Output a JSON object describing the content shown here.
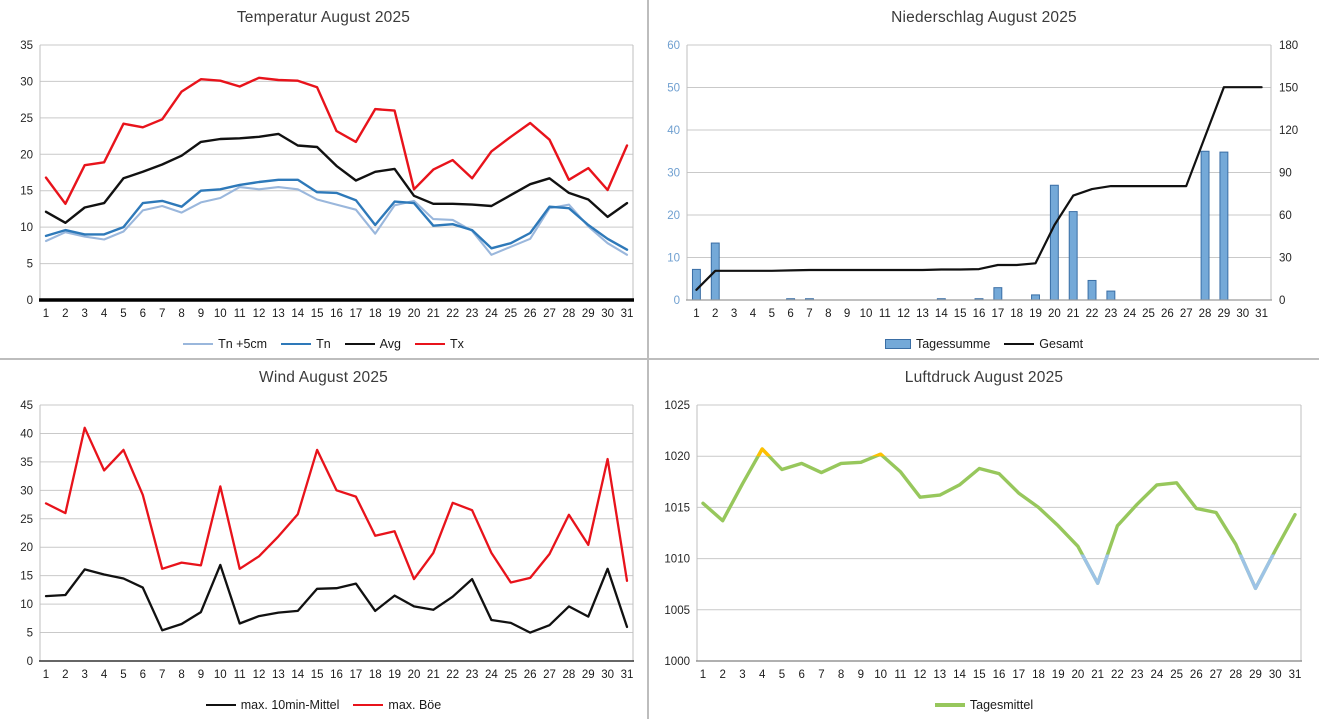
{
  "categories_days": [
    "1",
    "2",
    "3",
    "4",
    "5",
    "6",
    "7",
    "8",
    "9",
    "10",
    "11",
    "12",
    "13",
    "14",
    "15",
    "16",
    "17",
    "18",
    "19",
    "20",
    "21",
    "22",
    "23",
    "24",
    "25",
    "26",
    "27",
    "28",
    "29",
    "30",
    "31"
  ],
  "chart_data": [
    {
      "type": "line",
      "title": "Temperatur August 2025",
      "y": {
        "min": 0,
        "max": 35,
        "step": 5,
        "label_color": "#262626"
      },
      "x_axis_line": {
        "color": "#000000",
        "width": 3.4
      },
      "legend_position": "bottom",
      "series": [
        {
          "name": "Tn +5cm",
          "kind": "line",
          "color": "#9AB7DC",
          "width": 2.1,
          "values": [
            8.1,
            9.3,
            8.7,
            8.3,
            9.4,
            12.3,
            12.9,
            12.0,
            13.4,
            14.0,
            15.5,
            15.2,
            15.5,
            15.2,
            13.8,
            13.1,
            12.4,
            9.1,
            13.0,
            13.6,
            11.1,
            11.0,
            9.5,
            6.2,
            7.3,
            8.4,
            12.6,
            13.1,
            10.1,
            7.8,
            6.2
          ]
        },
        {
          "name": "Tn",
          "kind": "line",
          "color": "#2E79B9",
          "width": 2.4,
          "values": [
            8.8,
            9.6,
            9.0,
            9.0,
            10.0,
            13.3,
            13.6,
            12.8,
            15.0,
            15.2,
            15.8,
            16.2,
            16.5,
            16.5,
            14.8,
            14.7,
            13.7,
            10.3,
            13.5,
            13.3,
            10.2,
            10.4,
            9.6,
            7.1,
            7.8,
            9.2,
            12.8,
            12.6,
            10.3,
            8.4,
            6.9
          ]
        },
        {
          "name": "Avg",
          "kind": "line",
          "color": "#111111",
          "width": 2.4,
          "values": [
            12.1,
            10.6,
            12.7,
            13.3,
            16.7,
            17.6,
            18.6,
            19.8,
            21.7,
            22.1,
            22.2,
            22.4,
            22.8,
            21.2,
            21.0,
            18.4,
            16.4,
            17.6,
            18.0,
            14.3,
            13.2,
            13.2,
            13.1,
            12.9,
            14.4,
            15.9,
            16.7,
            14.7,
            13.8,
            11.4,
            13.3
          ]
        },
        {
          "name": "Tx",
          "kind": "line",
          "color": "#E8131B",
          "width": 2.4,
          "values": [
            16.8,
            13.2,
            18.5,
            18.9,
            24.2,
            23.7,
            24.8,
            28.6,
            30.3,
            30.1,
            29.3,
            30.5,
            30.2,
            30.1,
            29.2,
            23.2,
            21.7,
            26.2,
            26.0,
            15.2,
            17.9,
            19.2,
            16.7,
            20.4,
            22.4,
            24.3,
            22.0,
            16.5,
            18.1,
            15.1,
            21.2
          ]
        }
      ]
    },
    {
      "type": "combo",
      "title": "Niederschlag August 2025",
      "y": {
        "min": 0,
        "max": 60,
        "step": 10,
        "label_color": "#6F9FD0"
      },
      "y2": {
        "min": 0,
        "max": 180,
        "step": 30,
        "label_color": "#262626"
      },
      "x_axis_line": {
        "color": "#9A9A9A",
        "width": 1.2
      },
      "legend_position": "bottom",
      "series": [
        {
          "name": "Tagessumme",
          "kind": "bar",
          "color": "#74A9D8",
          "border": "#3A6EA5",
          "axis": "y",
          "values": [
            7.2,
            13.4,
            0,
            0,
            0,
            0.3,
            0.3,
            0,
            0,
            0,
            0,
            0,
            0,
            0.3,
            0,
            0.3,
            2.9,
            0,
            1.2,
            27.0,
            20.8,
            4.6,
            2.1,
            0,
            0,
            0,
            0,
            35.0,
            34.8,
            0,
            0
          ]
        },
        {
          "name": "Gesamt",
          "kind": "line",
          "color": "#111111",
          "width": 2.2,
          "axis": "y2",
          "values": [
            7.2,
            20.6,
            20.6,
            20.6,
            20.6,
            20.9,
            21.2,
            21.2,
            21.2,
            21.2,
            21.2,
            21.2,
            21.2,
            21.5,
            21.5,
            21.8,
            24.7,
            24.7,
            25.9,
            52.9,
            73.7,
            78.3,
            80.4,
            80.4,
            80.4,
            80.4,
            80.4,
            115.4,
            150.2,
            150.2,
            150.2
          ]
        }
      ]
    },
    {
      "type": "line",
      "title": "Wind August 2025",
      "y": {
        "min": 0,
        "max": 45,
        "step": 5,
        "label_color": "#262626"
      },
      "x_axis_line": {
        "color": "#333333",
        "width": 1.4
      },
      "legend_position": "bottom",
      "series": [
        {
          "name": "max. 10min-Mittel",
          "kind": "line",
          "color": "#111111",
          "width": 2.3,
          "values": [
            11.4,
            11.6,
            16.1,
            15.2,
            14.5,
            12.9,
            5.4,
            6.5,
            8.6,
            16.9,
            6.6,
            7.9,
            8.5,
            8.8,
            12.7,
            12.8,
            13.6,
            8.8,
            11.5,
            9.6,
            9.0,
            11.3,
            14.4,
            7.2,
            6.7,
            5.0,
            6.3,
            9.6,
            7.8,
            16.2,
            6.0
          ]
        },
        {
          "name": "max. Böe",
          "kind": "line",
          "color": "#E8131B",
          "width": 2.3,
          "values": [
            27.7,
            26.0,
            41.0,
            33.5,
            37.1,
            29.2,
            16.2,
            17.3,
            16.8,
            30.7,
            16.2,
            18.4,
            21.9,
            25.8,
            37.1,
            30.0,
            28.9,
            22.0,
            22.8,
            14.4,
            19.0,
            27.8,
            26.5,
            19.0,
            13.8,
            14.6,
            18.8,
            25.7,
            20.4,
            35.5,
            14.1
          ]
        }
      ]
    },
    {
      "type": "line",
      "title": "Luftdruck August 2025",
      "y": {
        "min": 1000,
        "max": 1025,
        "step": 5,
        "label_color": "#262626"
      },
      "x_axis_line": {
        "color": "#808080",
        "width": 1.2
      },
      "legend_position": "bottom",
      "series": [
        {
          "name": "Tagesmittel",
          "kind": "line",
          "color": "#97C75C",
          "width": 3.4,
          "color_rules": {
            "above": {
              "value": 1020,
              "color": "#FFC000"
            },
            "below": {
              "value": 1010.4,
              "color": "#9DC3E6"
            }
          },
          "values": [
            1015.4,
            1013.7,
            1017.3,
            1020.7,
            1018.7,
            1019.3,
            1018.4,
            1019.3,
            1019.4,
            1020.2,
            1018.5,
            1016.0,
            1016.2,
            1017.2,
            1018.8,
            1018.3,
            1016.4,
            1015.0,
            1013.2,
            1011.2,
            1007.6,
            1013.2,
            1015.3,
            1017.2,
            1017.4,
            1014.9,
            1014.5,
            1011.4,
            1007.1,
            1010.8,
            1014.3
          ]
        }
      ]
    }
  ],
  "grid_color": "#C9C9C9",
  "plot_border_color": "#BFBFBF"
}
